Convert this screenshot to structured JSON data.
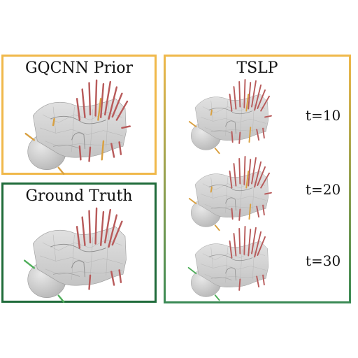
{
  "panels": {
    "prior": {
      "title": "GQCNN Prior",
      "border_color": "#f0b84a"
    },
    "truth": {
      "title": "Ground Truth",
      "border_color": "#1f6b3a"
    },
    "tslp": {
      "title": "TSLP",
      "border_top": "#f0b84a",
      "border_bottom": "#3a8a55"
    }
  },
  "time_labels": [
    "t=10",
    "t=20",
    "t=30"
  ],
  "colors": {
    "mesh_fill": "#d4d4d4",
    "mesh_edge": "#a8a8a8",
    "grasp_red": "#b85a5a",
    "grasp_orange": "#d9a040",
    "grasp_green": "#4fae5a"
  }
}
